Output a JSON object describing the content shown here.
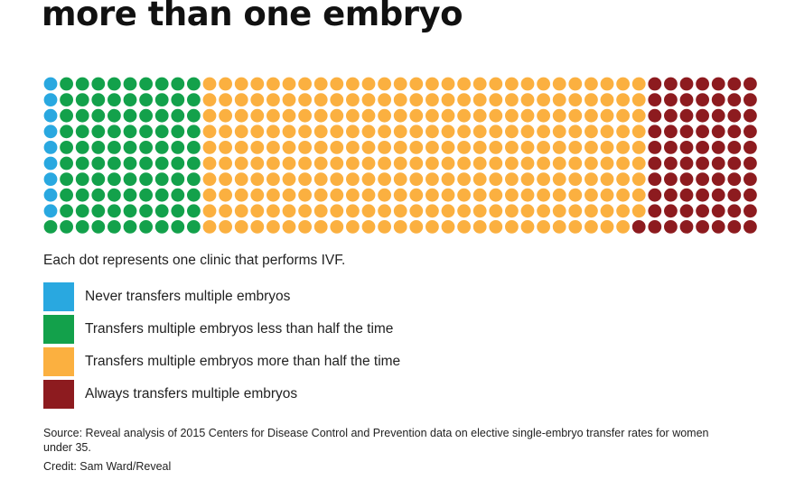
{
  "title": "more than one embryo",
  "note": "Each dot represents one clinic that performs IVF.",
  "legend": [
    {
      "label": "Never transfers multiple embryos",
      "color": "#29a8e0"
    },
    {
      "label": "Transfers multiple embryos less than half the time",
      "color": "#13a14b"
    },
    {
      "label": "Transfers multiple embryos more than half the time",
      "color": "#fbb040"
    },
    {
      "label": "Always transfers multiple embryos",
      "color": "#8d1b1f"
    }
  ],
  "source": "Source: Reveal analysis of 2015 Centers for Disease Control and Prevention data on elective single-embryo transfer rates for women under 35.",
  "credit": "Credit: Sam Ward/Reveal",
  "chart_data": {
    "type": "waffle",
    "unit": "clinic",
    "rows": 10,
    "fill_order": "column-wise, top to bottom",
    "series": [
      {
        "name": "Never transfers multiple embryos",
        "color": "#29a8e0",
        "value": 9
      },
      {
        "name": "Transfers multiple embryos less than half the time",
        "color": "#13a14b",
        "value": 91
      },
      {
        "name": "Transfers multiple embryos more than half the time",
        "color": "#fbb040",
        "value": 279
      },
      {
        "name": "Always transfers multiple embryos",
        "color": "#8d1b1f",
        "value": 71
      }
    ]
  }
}
